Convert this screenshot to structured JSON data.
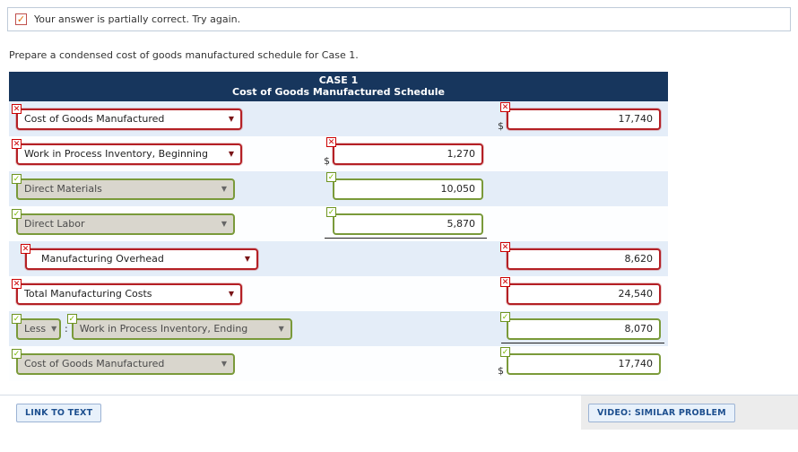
{
  "feedback": {
    "text": "Your answer is partially correct.  Try again."
  },
  "instruction": "Prepare a condensed cost of goods manufactured schedule for Case 1.",
  "icons": {
    "incorrect": "✕",
    "correct": "✓",
    "dropdown_arrow": "▼",
    "partial_check": "✓"
  },
  "colors": {
    "header_bg": "#17365d",
    "incorrect_border": "#b42025",
    "correct_border": "#7a9a3a"
  },
  "table": {
    "title_line1": "CASE 1",
    "title_line2": "Cost of Goods Manufactured Schedule",
    "rows": [
      {
        "label": "Cost of Goods Manufactured",
        "status": "incorrect",
        "currency": "$",
        "amount": "17,740"
      },
      {
        "label": "Work in Process Inventory, Beginning",
        "status": "incorrect",
        "currency": "$",
        "amount": "1,270"
      },
      {
        "label": "Direct Materials",
        "status": "correct",
        "amount": "10,050"
      },
      {
        "label": "Direct Labor",
        "status": "correct",
        "amount": "5,870"
      },
      {
        "label": "Manufacturing Overhead",
        "status": "incorrect",
        "amount": "8,620"
      },
      {
        "label": "Total Manufacturing Costs",
        "status": "incorrect",
        "amount": "24,540"
      },
      {
        "less_label": "Less",
        "separator": ":",
        "label": "Work in Process Inventory, Ending",
        "status": "correct",
        "amount": "8,070"
      },
      {
        "label": "Cost of Goods Manufactured",
        "status": "correct",
        "currency": "$",
        "amount": "17,740"
      }
    ]
  },
  "footer": {
    "link_to_text": "LINK TO TEXT",
    "video_button": "VIDEO: SIMILAR PROBLEM"
  }
}
